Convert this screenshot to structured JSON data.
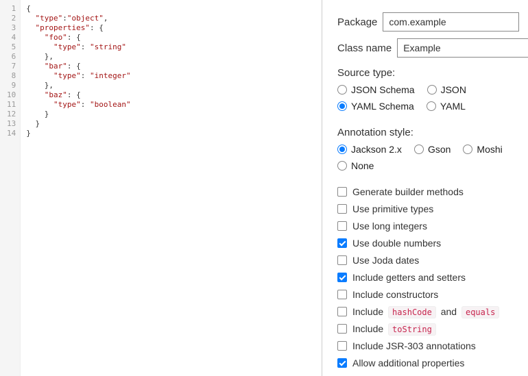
{
  "editor": {
    "lines": [
      "1",
      "2",
      "3",
      "4",
      "5",
      "6",
      "7",
      "8",
      "9",
      "10",
      "11",
      "12",
      "13",
      "14"
    ],
    "code_tokens": [
      [
        [
          "p",
          "{"
        ]
      ],
      [
        [
          "p",
          "  "
        ],
        [
          "k",
          "\"type\""
        ],
        [
          "p",
          ":"
        ],
        [
          "s",
          "\"object\""
        ],
        [
          "p",
          ","
        ]
      ],
      [
        [
          "p",
          "  "
        ],
        [
          "k",
          "\"properties\""
        ],
        [
          "p",
          ": {"
        ]
      ],
      [
        [
          "p",
          "    "
        ],
        [
          "k",
          "\"foo\""
        ],
        [
          "p",
          ": {"
        ]
      ],
      [
        [
          "p",
          "      "
        ],
        [
          "k",
          "\"type\""
        ],
        [
          "p",
          ": "
        ],
        [
          "s",
          "\"string\""
        ]
      ],
      [
        [
          "p",
          "    },"
        ]
      ],
      [
        [
          "p",
          "    "
        ],
        [
          "k",
          "\"bar\""
        ],
        [
          "p",
          ": {"
        ]
      ],
      [
        [
          "p",
          "      "
        ],
        [
          "k",
          "\"type\""
        ],
        [
          "p",
          ": "
        ],
        [
          "s",
          "\"integer\""
        ]
      ],
      [
        [
          "p",
          "    },"
        ]
      ],
      [
        [
          "p",
          "    "
        ],
        [
          "k",
          "\"baz\""
        ],
        [
          "p",
          ": {"
        ]
      ],
      [
        [
          "p",
          "      "
        ],
        [
          "k",
          "\"type\""
        ],
        [
          "p",
          ": "
        ],
        [
          "s",
          "\"boolean\""
        ]
      ],
      [
        [
          "p",
          "    }"
        ]
      ],
      [
        [
          "p",
          "  }"
        ]
      ],
      [
        [
          "p",
          "}"
        ]
      ]
    ]
  },
  "fields": {
    "package_label": "Package",
    "package_value": "com.example",
    "classname_label": "Class name",
    "classname_value": "Example"
  },
  "source_type": {
    "label": "Source type:",
    "options": [
      {
        "label": "JSON Schema",
        "checked": false
      },
      {
        "label": "JSON",
        "checked": false
      },
      {
        "label": "YAML Schema",
        "checked": true
      },
      {
        "label": "YAML",
        "checked": false
      }
    ]
  },
  "annotation_style": {
    "label": "Annotation style:",
    "options": [
      {
        "label": "Jackson 2.x",
        "checked": true
      },
      {
        "label": "Gson",
        "checked": false
      },
      {
        "label": "Moshi",
        "checked": false
      },
      {
        "label": "None",
        "checked": false
      }
    ]
  },
  "checkboxes": [
    {
      "label": "Generate builder methods",
      "checked": false
    },
    {
      "label": "Use primitive types",
      "checked": false
    },
    {
      "label": "Use long integers",
      "checked": false
    },
    {
      "label": "Use double numbers",
      "checked": true
    },
    {
      "label": "Use Joda dates",
      "checked": false
    },
    {
      "label": "Include getters and setters",
      "checked": true
    },
    {
      "label": "Include constructors",
      "checked": false
    },
    {
      "label_parts": [
        "Include ",
        [
          "hashCode"
        ],
        " and ",
        [
          "equals"
        ]
      ],
      "checked": false
    },
    {
      "label_parts": [
        "Include ",
        [
          "toString"
        ]
      ],
      "checked": false
    },
    {
      "label": "Include JSR-303 annotations",
      "checked": false
    },
    {
      "label": "Allow additional properties",
      "checked": true
    }
  ],
  "colors": {
    "accent": "#0a7cff",
    "code_key": "#a31515",
    "code_string": "#a31515",
    "inline_code_bg": "#f7f2f4",
    "inline_code_fg": "#c7254e"
  }
}
